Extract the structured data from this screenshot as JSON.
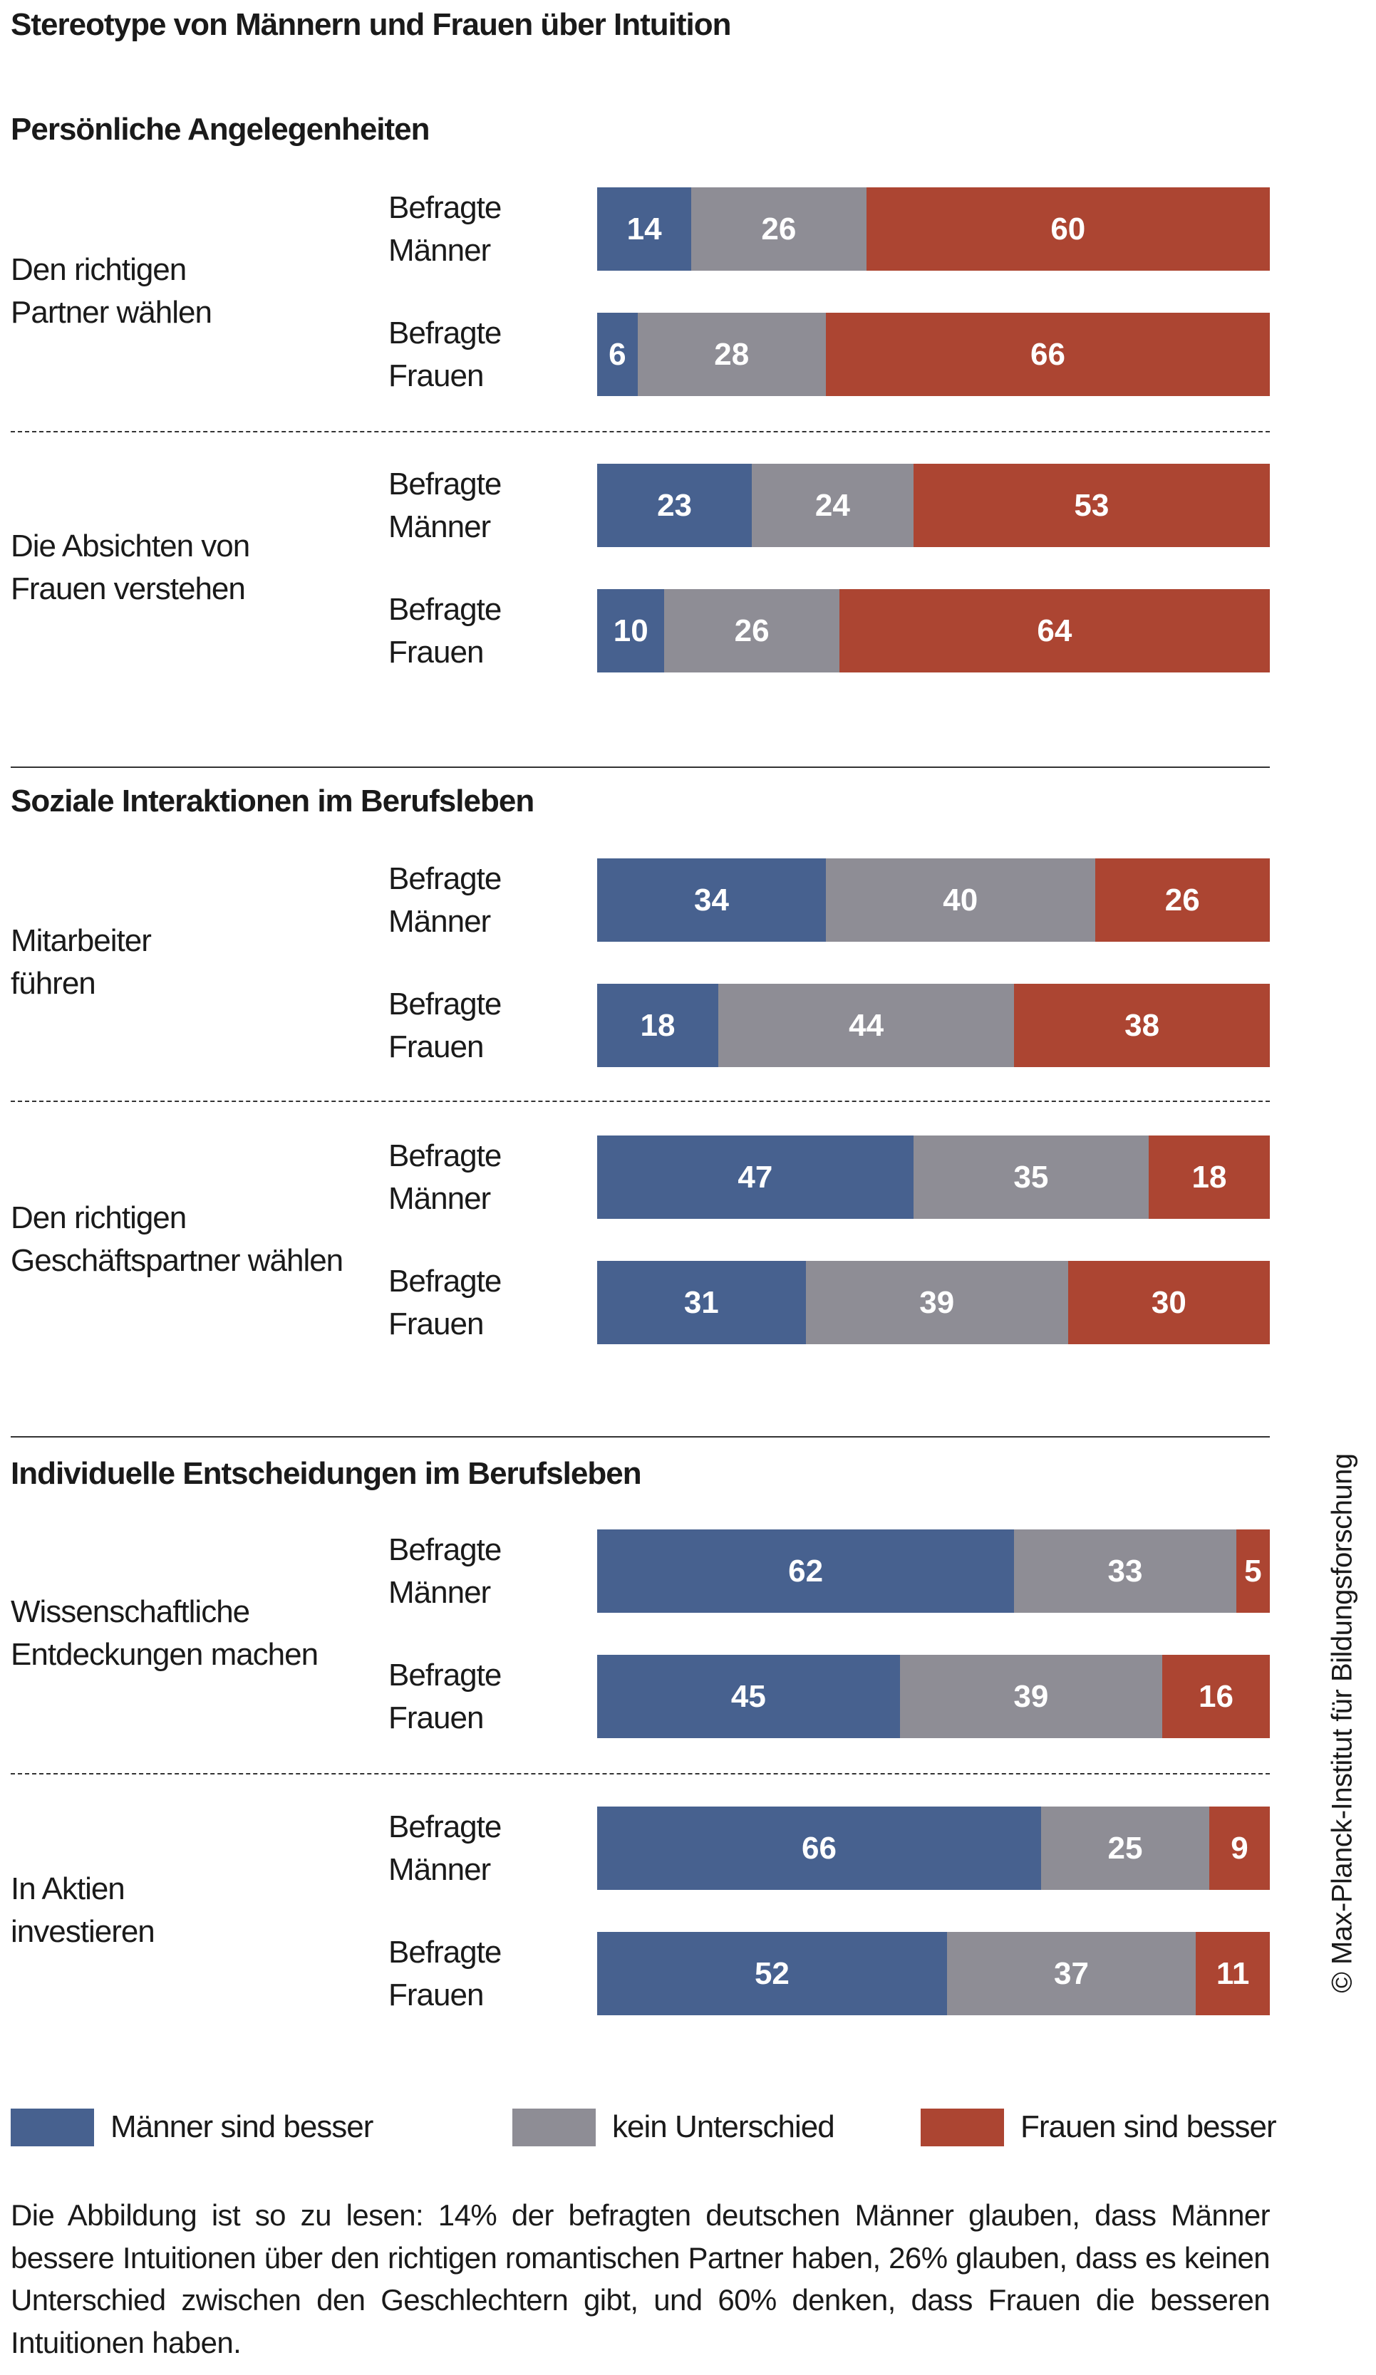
{
  "chart_data": {
    "type": "bar",
    "orientation": "horizontal-stacked-100",
    "title": "Stereotype von Männern und Frauen über Intuition",
    "legend": [
      {
        "name": "Männer sind besser",
        "color": "#47618f"
      },
      {
        "name": "kein Unterschied",
        "color": "#8e8d95"
      },
      {
        "name": "Frauen sind besser",
        "color": "#ac4532"
      }
    ],
    "legend_position": "bottom",
    "respondent_labels": {
      "men": [
        "Befragte",
        "Männer"
      ],
      "women": [
        "Befragte",
        "Frauen"
      ]
    },
    "sections": [
      {
        "title": "Persönliche Angelegenheiten",
        "topics": [
          {
            "label": [
              "Den richtigen",
              "Partner wählen"
            ],
            "men": [
              14,
              26,
              60
            ],
            "women": [
              6,
              28,
              66
            ]
          },
          {
            "label": [
              "Die Absichten von",
              "Frauen verstehen"
            ],
            "men": [
              23,
              24,
              53
            ],
            "women": [
              10,
              26,
              64
            ]
          }
        ]
      },
      {
        "title": "Soziale Interaktionen im Berufsleben",
        "topics": [
          {
            "label": [
              "Mitarbeiter",
              "führen"
            ],
            "men": [
              34,
              40,
              26
            ],
            "women": [
              18,
              44,
              38
            ]
          },
          {
            "label": [
              "Den richtigen",
              "Geschäftspartner wählen"
            ],
            "men": [
              47,
              35,
              18
            ],
            "women": [
              31,
              39,
              30
            ]
          }
        ]
      },
      {
        "title": "Individuelle Entscheidungen im Berufsleben",
        "topics": [
          {
            "label": [
              "Wissenschaftliche",
              "Entdeckungen machen"
            ],
            "men": [
              62,
              33,
              5
            ],
            "women": [
              45,
              39,
              16
            ]
          },
          {
            "label": [
              "In Aktien",
              "investieren"
            ],
            "men": [
              66,
              25,
              9
            ],
            "women": [
              52,
              37,
              11
            ]
          }
        ]
      }
    ],
    "note": "Die Abbildung ist so zu lesen: 14% der befragten deutschen Männer glauben, dass Männer bessere Intuitionen über den richtigen romantischen Partner haben, 26% glauben, dass es keinen Unter­schied zwischen den Geschlechtern gibt, und 60% denken, dass Frauen die besseren Intuitionen haben.",
    "copyright": "© Max-Planck-Institut für Bildungsforschung"
  }
}
